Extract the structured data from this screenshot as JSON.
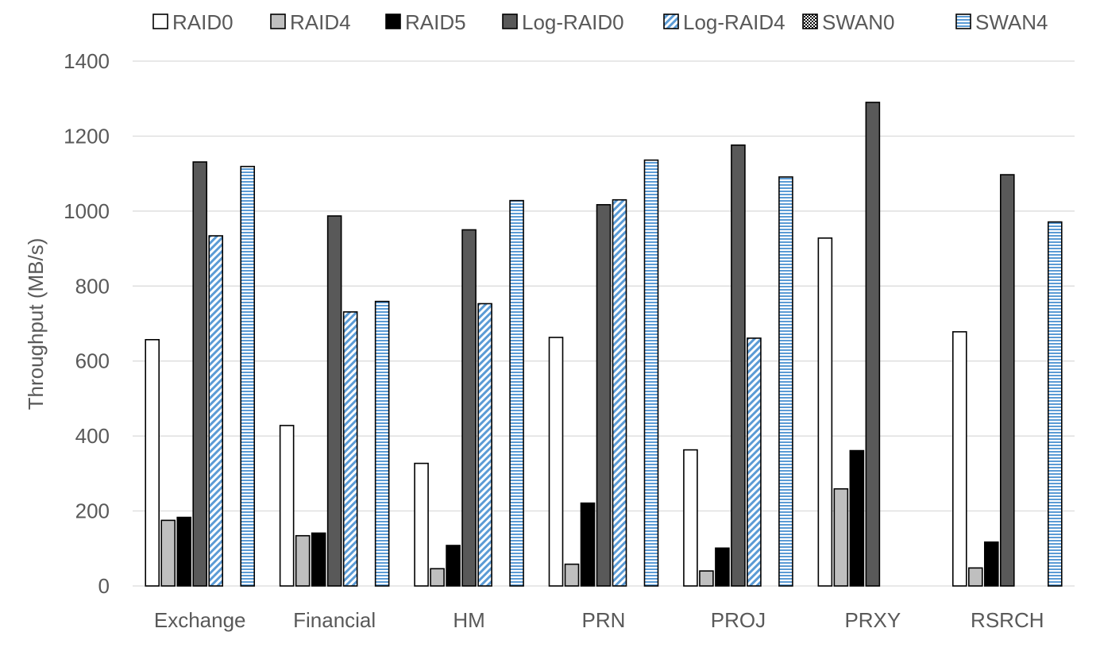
{
  "chart_data": {
    "type": "bar",
    "title": "",
    "xlabel": "",
    "ylabel": "Throughput (MB/s)",
    "ylim": [
      0,
      1400
    ],
    "yticks": [
      0,
      200,
      400,
      600,
      800,
      1000,
      1200,
      1400
    ],
    "grid": "horizontal",
    "legend_position": "top",
    "categories": [
      "Exchange",
      "Financial",
      "HM",
      "PRN",
      "PROJ",
      "PRXY",
      "RSRCH"
    ],
    "series": [
      {
        "name": "RAID0",
        "fill": "#ffffff",
        "pattern": "none",
        "values": [
          657,
          428,
          327,
          663,
          363,
          928,
          678
        ]
      },
      {
        "name": "RAID4",
        "fill": "#bfbfbf",
        "pattern": "none",
        "values": [
          175,
          134,
          46,
          58,
          40,
          259,
          48
        ]
      },
      {
        "name": "RAID5",
        "fill": "#000000",
        "pattern": "none",
        "values": [
          183,
          141,
          108,
          221,
          101,
          361,
          117
        ]
      },
      {
        "name": "Log-RAID0",
        "fill": "#595959",
        "pattern": "none",
        "values": [
          1131,
          987,
          950,
          1017,
          1176,
          1290,
          1097
        ]
      },
      {
        "name": "Log-RAID4",
        "fill": "#ffffff",
        "pattern": "diagonal-blue",
        "values": [
          934,
          731,
          753,
          1030,
          661,
          null,
          null
        ]
      },
      {
        "name": "SWAN0",
        "fill": "#ffffff",
        "pattern": "dots",
        "values": [
          null,
          null,
          null,
          null,
          null,
          null,
          null
        ]
      },
      {
        "name": "SWAN4",
        "fill": "#ffffff",
        "pattern": "horizontal-blue",
        "values": [
          1119,
          759,
          1028,
          1136,
          1091,
          null,
          971
        ]
      }
    ]
  }
}
